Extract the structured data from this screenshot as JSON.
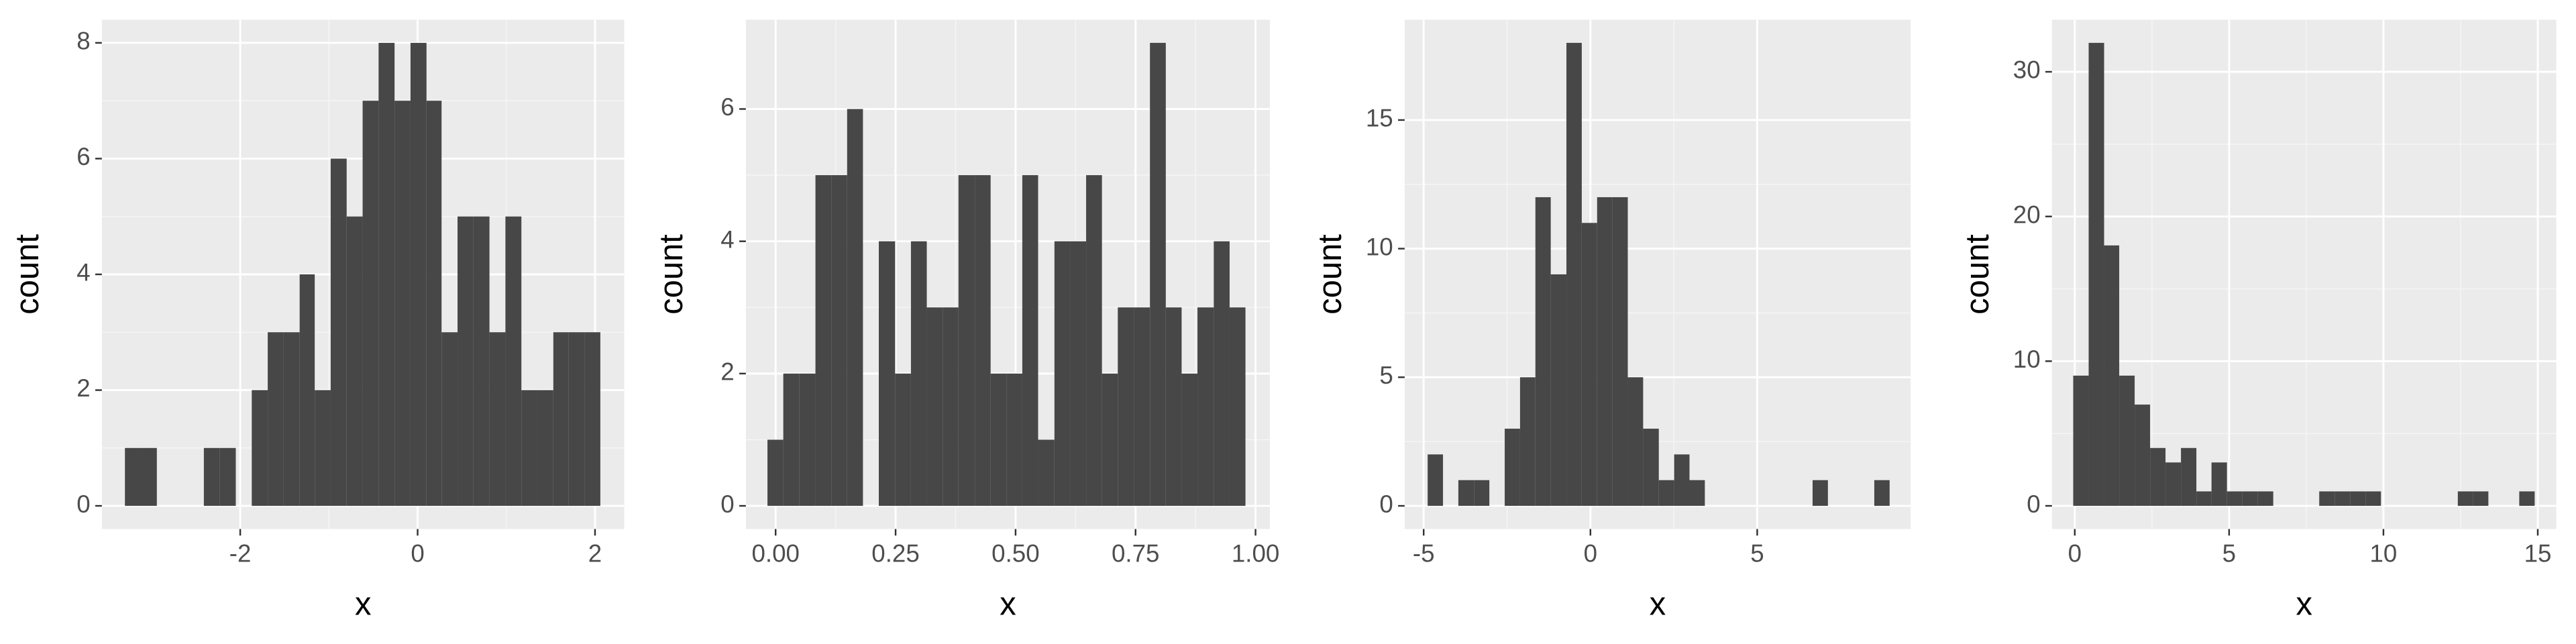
{
  "chart_data": [
    {
      "type": "histogram",
      "x_label": "x",
      "y_label": "count",
      "color": "#474747",
      "grid": true,
      "bins": [
        -3.3,
        -3.12,
        -2.94,
        -2.76,
        -2.59,
        -2.41,
        -2.23,
        -2.05,
        -1.87,
        -1.69,
        -1.51,
        -1.33,
        -1.16,
        -0.98,
        -0.8,
        -0.62,
        -0.44,
        -0.26,
        -0.08,
        0.1,
        0.27,
        0.45,
        0.63,
        0.81,
        0.99,
        1.17,
        1.35,
        1.53,
        1.7,
        1.88,
        2.06
      ],
      "values": [
        1,
        1,
        0,
        0,
        0,
        1,
        1,
        0,
        2,
        3,
        3,
        4,
        2,
        6,
        5,
        7,
        8,
        7,
        8,
        7,
        3,
        5,
        5,
        3,
        5,
        2,
        2,
        3,
        3,
        3
      ],
      "xlim": [
        -3.56,
        2.33
      ],
      "ylim": [
        -0.4,
        8.4
      ],
      "xticks": [
        -2,
        0,
        2
      ],
      "yticks": [
        0,
        2,
        4,
        6,
        8
      ]
    },
    {
      "type": "histogram",
      "x_label": "x",
      "y_label": "count",
      "color": "#474747",
      "grid": true,
      "bins": [
        -0.017,
        0.016,
        0.049,
        0.083,
        0.116,
        0.149,
        0.182,
        0.215,
        0.249,
        0.282,
        0.315,
        0.348,
        0.381,
        0.415,
        0.448,
        0.481,
        0.514,
        0.547,
        0.581,
        0.614,
        0.647,
        0.68,
        0.713,
        0.747,
        0.78,
        0.813,
        0.846,
        0.879,
        0.913,
        0.946,
        0.979
      ],
      "values": [
        1,
        2,
        2,
        5,
        5,
        6,
        0,
        4,
        2,
        4,
        3,
        3,
        5,
        5,
        2,
        2,
        5,
        1,
        4,
        4,
        5,
        2,
        3,
        3,
        7,
        3,
        2,
        3,
        4,
        3
      ],
      "xlim": [
        -0.062,
        1.03
      ],
      "ylim": [
        -0.35,
        7.35
      ],
      "xticks": [
        {
          "value": 0,
          "label": "0.00"
        },
        {
          "value": 0.25,
          "label": "0.25"
        },
        {
          "value": 0.5,
          "label": "0.50"
        },
        {
          "value": 0.75,
          "label": "0.75"
        },
        {
          "value": 1,
          "label": "1.00"
        }
      ],
      "yticks": [
        0,
        2,
        4,
        6
      ]
    },
    {
      "type": "histogram",
      "x_label": "x",
      "y_label": "count",
      "color": "#474747",
      "grid": true,
      "bins": [
        -4.88,
        -4.42,
        -3.96,
        -3.49,
        -3.03,
        -2.57,
        -2.11,
        -1.65,
        -1.19,
        -0.72,
        -0.26,
        0.2,
        0.66,
        1.12,
        1.58,
        2.05,
        2.51,
        2.97,
        3.43,
        3.89,
        4.35,
        4.81,
        5.28,
        5.74,
        6.2,
        6.66,
        7.12,
        7.58,
        8.05,
        8.51,
        8.97
      ],
      "values": [
        2,
        0,
        1,
        1,
        0,
        3,
        5,
        12,
        9,
        18,
        11,
        12,
        12,
        5,
        3,
        1,
        2,
        1,
        0,
        0,
        0,
        0,
        0,
        0,
        0,
        1,
        0,
        0,
        0,
        1
      ],
      "xlim": [
        -5.57,
        9.6
      ],
      "ylim": [
        -0.9,
        18.9
      ],
      "xticks": [
        -5,
        0,
        5
      ],
      "yticks": [
        0,
        5,
        10,
        15
      ]
    },
    {
      "type": "histogram",
      "x_label": "x",
      "y_label": "count",
      "color": "#474747",
      "grid": true,
      "bins": [
        -0.05,
        0.45,
        0.95,
        1.44,
        1.94,
        2.44,
        2.94,
        3.44,
        3.94,
        4.43,
        4.93,
        5.43,
        5.93,
        6.43,
        6.93,
        7.42,
        7.92,
        8.42,
        8.92,
        9.42,
        9.92,
        10.41,
        10.91,
        11.41,
        11.91,
        12.41,
        12.91,
        13.4,
        13.9,
        14.4,
        14.9
      ],
      "values": [
        9,
        32,
        18,
        9,
        7,
        4,
        3,
        4,
        1,
        3,
        1,
        1,
        1,
        0,
        0,
        0,
        1,
        1,
        1,
        1,
        0,
        0,
        0,
        0,
        0,
        1,
        1,
        0,
        0,
        1
      ],
      "xlim": [
        -0.74,
        15.6
      ],
      "ylim": [
        -1.6,
        33.6
      ],
      "xticks": [
        0,
        5,
        10,
        15
      ],
      "yticks": [
        0,
        10,
        20,
        30
      ]
    }
  ]
}
